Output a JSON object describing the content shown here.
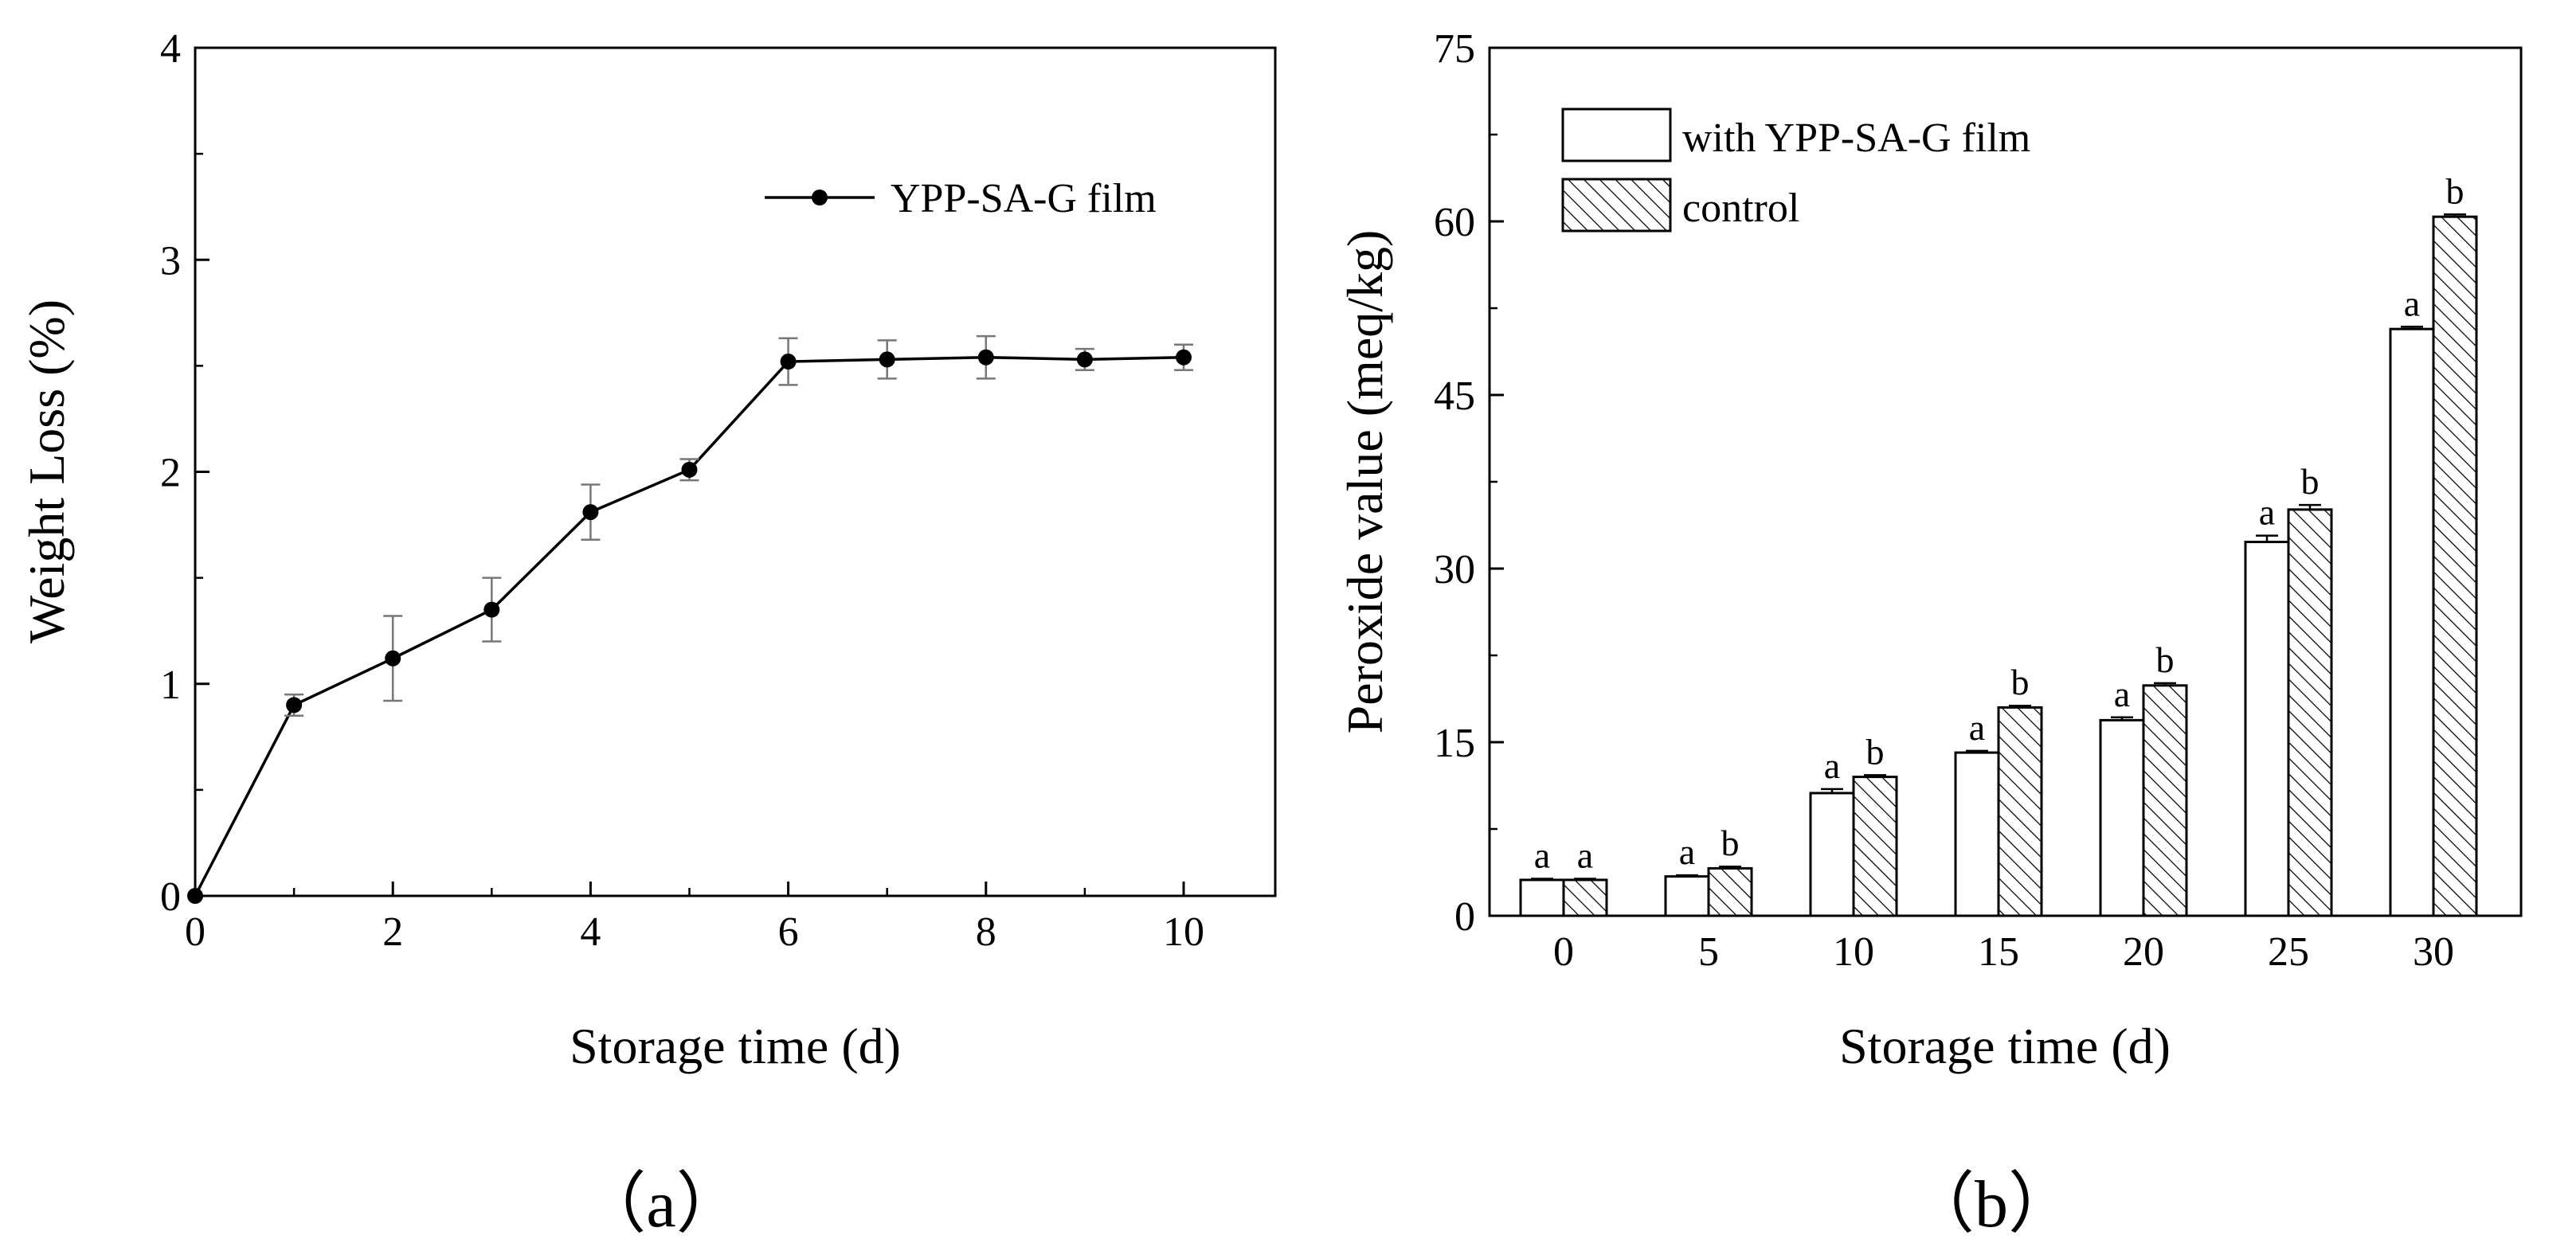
{
  "chart_data": [
    {
      "type": "line",
      "xlabel": "Storage time (d)",
      "ylabel": "Weight Loss (%)",
      "xlim": [
        0,
        11
      ],
      "ylim": [
        0,
        4
      ],
      "xticks": [
        "0",
        "2",
        "4",
        "6",
        "8",
        "10"
      ],
      "yticks": [
        "0",
        "1",
        "2",
        "3",
        "4"
      ],
      "legend_position": "top-right",
      "panel_label": "（a）",
      "series": [
        {
          "name": "YPP-SA-G film",
          "x": [
            0,
            1,
            2,
            3,
            4,
            5,
            6,
            7,
            8,
            9,
            10
          ],
          "y": [
            0,
            0.9,
            1.12,
            1.35,
            1.81,
            2.01,
            2.52,
            2.53,
            2.54,
            2.53,
            2.54
          ],
          "error": [
            0,
            0.05,
            0.2,
            0.15,
            0.13,
            0.05,
            0.11,
            0.09,
            0.1,
            0.05,
            0.06
          ]
        }
      ]
    },
    {
      "type": "bar",
      "xlabel": "Storage time (d)",
      "ylabel": "Peroxide value (meq/kg)",
      "categories": [
        "0",
        "5",
        "10",
        "15",
        "20",
        "25",
        "30"
      ],
      "ylim": [
        0,
        75
      ],
      "yticks": [
        "0",
        "15",
        "30",
        "45",
        "60",
        "75"
      ],
      "legend_position": "top-left",
      "panel_label": "（b）",
      "series": [
        {
          "name": "with YPP-SA-G film",
          "pattern": "none",
          "values": [
            3.1,
            3.4,
            10.6,
            14.1,
            16.9,
            32.3,
            50.7
          ],
          "error": [
            0.1,
            0.1,
            0.35,
            0.15,
            0.25,
            0.55,
            0.2
          ],
          "significance": [
            "a",
            "a",
            "a",
            "a",
            "a",
            "a",
            "a"
          ]
        },
        {
          "name": "control",
          "pattern": "diagonal-hatch",
          "values": [
            3.1,
            4.1,
            12.0,
            18.0,
            19.9,
            35.1,
            60.4
          ],
          "error": [
            0.1,
            0.15,
            0.15,
            0.15,
            0.2,
            0.4,
            0.2
          ],
          "significance": [
            "a",
            "b",
            "b",
            "b",
            "b",
            "b",
            "b"
          ]
        }
      ]
    }
  ]
}
